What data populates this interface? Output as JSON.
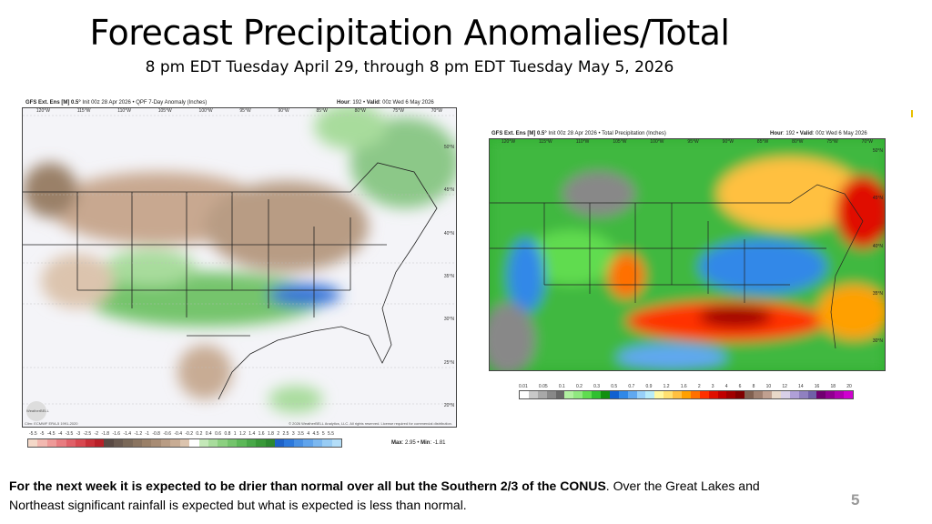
{
  "slide": {
    "title": "Forecast Precipitation Anomalies/Total",
    "subtitle": "8 pm EDT Tuesday April 29, through  8 pm EDT Tuesday May 5, 2026",
    "page_number": "5",
    "caption_bold": "For the next week it is expected to be drier than normal over all but the Southern 2/3 of the CONUS",
    "caption_rest": ". Over the Great Lakes and Northeast significant rainfall is expected but what is expected is less than normal."
  },
  "left_map": {
    "model": "GFS Ext.  Ens [M] 0.5°",
    "init": "Init 00z 28 Apr 2026 • QPF 7-Day Anomaly (Inches)",
    "hour_label": "Hour",
    "hour": "192",
    "valid_label": "Valid",
    "valid": "00z Wed 6 May 2026",
    "lon_labels": [
      "120°W",
      "115°W",
      "110°W",
      "105°W",
      "100°W",
      "95°W",
      "90°W",
      "85°W",
      "80°W",
      "75°W",
      "70°W"
    ],
    "lat_labels": [
      "50°N",
      "45°N",
      "40°N",
      "35°N",
      "30°N",
      "25°N",
      "20°N"
    ],
    "clim": "Clim: ECMWF ERA-5 1991-2020",
    "copyright": "© 2026 WeatherBELL Analytics, LLC. All rights reserved. License required for commercial distribution.",
    "logo": "WeatherBELL",
    "max_label": "Max",
    "max": "2.95",
    "min_label": "Min",
    "min": "-1.81",
    "scale_labels": [
      "-5.5",
      "-5",
      "-4.5",
      "-4",
      "-3.5",
      "-3",
      "-2.5",
      "-2",
      "-1.8",
      "-1.6",
      "-1.4",
      "-1.2",
      "-1",
      "-0.8",
      "-0.6",
      "-0.4",
      "-0.2",
      "0.2",
      "0.4",
      "0.6",
      "0.8",
      "1",
      "1.2",
      "1.4",
      "1.6",
      "1.8",
      "2",
      "2.5",
      "3",
      "3.5",
      "4",
      "4.5",
      "5",
      "5.5"
    ],
    "scale_colors": [
      "#f4d8c8",
      "#f2b8b0",
      "#ee9a98",
      "#e87c80",
      "#e06068",
      "#d84850",
      "#c83038",
      "#b82028",
      "#5a4a44",
      "#6a5a50",
      "#7a6858",
      "#8a7460",
      "#9a8068",
      "#a88c74",
      "#b89c84",
      "#c8ac94",
      "#dcc4ae",
      "#ffffff",
      "#c4e8b8",
      "#a8dc9c",
      "#8cd080",
      "#74c46c",
      "#5cb858",
      "#48a848",
      "#389838",
      "#2c8830",
      "#1e62c8",
      "#2c78dc",
      "#4890e4",
      "#60a4ec",
      "#7cb8f0",
      "#98ccf4",
      "#b4def8"
    ],
    "colors": {
      "land": "#f4f4f8",
      "dry": "#c8a890",
      "wet": "#8cc888",
      "heavy": "#3070d8"
    }
  },
  "right_map": {
    "model": "GFS Ext.  Ens [M] 0.5°",
    "init": "Init 00z 28 Apr 2026 • Total Precipitation (Inches)",
    "hour_label": "Hour",
    "hour": "192",
    "valid_label": "Valid",
    "valid": "00z Wed 6 May 2026",
    "lon_labels": [
      "120°W",
      "115°W",
      "110°W",
      "105°W",
      "100°W",
      "95°W",
      "90°W",
      "85°W",
      "80°W",
      "75°W",
      "70°W"
    ],
    "lat_labels": [
      "50°N",
      "45°N",
      "40°N",
      "35°N",
      "30°N"
    ],
    "scale_labels": [
      "0.01",
      "0.05",
      "0.1",
      "0.2",
      "0.3",
      "0.5",
      "0.7",
      "0.9",
      "1.2",
      "1.6",
      "2",
      "3",
      "4",
      "6",
      "8",
      "10",
      "12",
      "14",
      "16",
      "18",
      "20"
    ],
    "scale_colors": [
      "#ffffff",
      "#c8c8c8",
      "#a8a8a8",
      "#888888",
      "#686868",
      "#b0f0a0",
      "#90e880",
      "#60dc50",
      "#30c030",
      "#109010",
      "#1060d0",
      "#3088e8",
      "#60a8f0",
      "#98d0f8",
      "#b8ecf8",
      "#fff8a0",
      "#ffe070",
      "#ffc040",
      "#ffa000",
      "#ff7000",
      "#ff3000",
      "#e01000",
      "#c00000",
      "#a00000",
      "#800000",
      "#806050",
      "#a08070",
      "#c0a090",
      "#e8d8c8",
      "#d8d0e8",
      "#b0a0d8",
      "#9080c0",
      "#7060a8",
      "#700070",
      "#900090",
      "#b000b0",
      "#d000d0"
    ]
  }
}
